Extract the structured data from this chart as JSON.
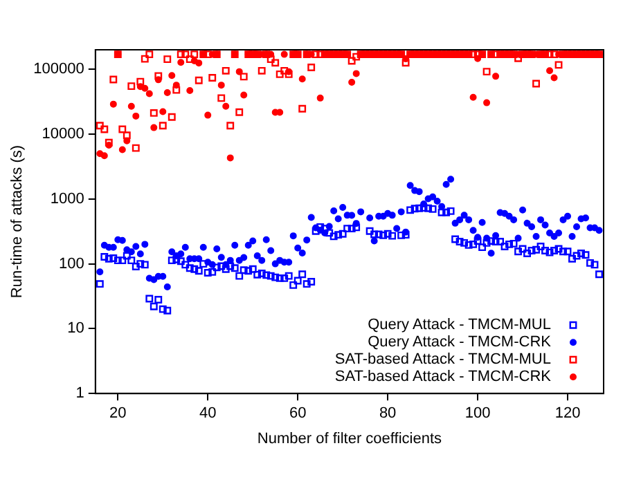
{
  "chart_data": {
    "type": "scatter",
    "xlabel": "Number of filter coefficients",
    "ylabel": "Run-time of attacks (s)",
    "log": "y",
    "grid": false,
    "legend": "bottom right",
    "xlim": [
      15,
      128
    ],
    "xticks": [
      20,
      40,
      60,
      80,
      100,
      120
    ],
    "ylim": [
      1,
      200000
    ],
    "yticks": [
      1,
      10,
      100,
      1000,
      10000,
      100000
    ],
    "series": [
      {
        "name": "Query Attack - TMCM-MUL",
        "color": "#0000ff",
        "marker": "square",
        "x": [
          16,
          17,
          18,
          19,
          20,
          21,
          22,
          23,
          24,
          25,
          26,
          27,
          28,
          29,
          30,
          31,
          32,
          33,
          34,
          35,
          36,
          37,
          38,
          39,
          40,
          41,
          42,
          43,
          44,
          45,
          46,
          47,
          48,
          49,
          50,
          51,
          52,
          53,
          54,
          55,
          56,
          57,
          58,
          59,
          60,
          61,
          62,
          63,
          64,
          65,
          66,
          67,
          68,
          69,
          70,
          71,
          72,
          73,
          76,
          77,
          78,
          79,
          80,
          81,
          83,
          84,
          85,
          86,
          87,
          88,
          89,
          90,
          92,
          93,
          94,
          95,
          96,
          97,
          98,
          99,
          100,
          101,
          102,
          103,
          104,
          105,
          106,
          107,
          108,
          109,
          110,
          111,
          112,
          113,
          114,
          115,
          116,
          117,
          118,
          119,
          120,
          121,
          122,
          123,
          124,
          125,
          126,
          127
        ],
        "values": [
          49,
          128,
          120,
          122,
          113,
          113,
          133,
          113,
          91,
          100,
          97,
          29,
          22,
          28,
          20,
          19,
          113,
          117,
          110,
          97,
          86,
          83,
          78,
          100,
          73,
          75,
          88,
          92,
          83,
          92,
          86,
          65,
          80,
          78,
          83,
          68,
          71,
          67,
          65,
          62,
          60,
          60,
          65,
          47,
          55,
          69,
          49,
          53,
          320,
          370,
          350,
          300,
          265,
          280,
          290,
          350,
          350,
          365,
          320,
          285,
          285,
          275,
          290,
          270,
          275,
          280,
          675,
          710,
          720,
          730,
          720,
          700,
          620,
          620,
          650,
          240,
          220,
          210,
          195,
          200,
          225,
          180,
          210,
          225,
          220,
          220,
          185,
          200,
          205,
          155,
          170,
          145,
          160,
          165,
          185,
          160,
          150,
          160,
          170,
          155,
          155,
          120,
          133,
          145,
          137,
          103,
          97,
          69
        ]
      },
      {
        "name": "Query Attack - TMCM-CRK",
        "color": "#0000ff",
        "marker": "circle",
        "x": [
          16,
          17,
          18,
          19,
          20,
          21,
          22,
          23,
          24,
          25,
          26,
          27,
          28,
          29,
          30,
          31,
          32,
          33,
          34,
          35,
          36,
          37,
          38,
          39,
          40,
          41,
          42,
          43,
          44,
          45,
          46,
          47,
          48,
          49,
          50,
          51,
          52,
          53,
          54,
          55,
          56,
          57,
          58,
          59,
          60,
          61,
          62,
          63,
          64,
          65,
          66,
          67,
          68,
          69,
          70,
          71,
          72,
          73,
          74,
          76,
          77,
          78,
          79,
          80,
          81,
          82,
          83,
          84,
          85,
          86,
          87,
          88,
          89,
          90,
          91,
          92,
          93,
          94,
          95,
          96,
          97,
          98,
          99,
          100,
          101,
          102,
          103,
          104,
          105,
          106,
          107,
          108,
          109,
          110,
          111,
          112,
          113,
          114,
          115,
          116,
          117,
          118,
          119,
          120,
          121,
          122,
          123,
          124,
          125,
          126,
          127
        ],
        "values": [
          75,
          193,
          180,
          180,
          235,
          230,
          165,
          153,
          185,
          142,
          200,
          60,
          57,
          64,
          64,
          44,
          153,
          133,
          142,
          180,
          120,
          120,
          120,
          180,
          106,
          97,
          170,
          126,
          97,
          113,
          193,
          113,
          125,
          193,
          225,
          133,
          113,
          235,
          160,
          100,
          113,
          106,
          106,
          270,
          175,
          147,
          233,
          520,
          360,
          330,
          299,
          378,
          655,
          494,
          743,
          561,
          560,
          420,
          634,
          510,
          225,
          543,
          543,
          597,
          561,
          350,
          634,
          309,
          1620,
          1350,
          1300,
          840,
          1010,
          1080,
          925,
          765,
          1680,
          2020,
          423,
          478,
          561,
          478,
          328,
          256,
          435,
          248,
          146,
          272,
          616,
          597,
          543,
          478,
          248,
          676,
          423,
          373,
          264,
          478,
          396,
          299,
          264,
          299,
          478,
          543,
          264,
          373,
          494,
          510,
          360,
          360,
          328
        ]
      },
      {
        "name": "SAT-based Attack - TMCM-MUL",
        "color": "#ff0000",
        "marker": "square",
        "x": [
          16,
          17,
          18,
          19,
          20,
          21,
          22,
          23,
          24,
          25,
          26,
          27,
          28,
          29,
          30,
          31,
          32,
          33,
          34,
          35,
          36,
          37,
          38,
          39,
          40,
          41,
          42,
          43,
          44,
          45,
          46,
          47,
          48,
          49,
          50,
          51,
          52,
          53,
          54,
          55,
          56,
          57,
          58,
          59,
          60,
          61,
          62,
          63,
          64,
          65,
          66,
          67,
          68,
          69,
          70,
          71,
          72,
          73,
          74,
          75,
          76,
          77,
          78,
          79,
          80,
          81,
          82,
          83,
          84,
          85,
          86,
          87,
          88,
          89,
          90,
          91,
          92,
          93,
          94,
          95,
          96,
          97,
          98,
          99,
          100,
          101,
          102,
          103,
          104,
          105,
          106,
          107,
          108,
          109,
          110,
          111,
          112,
          113,
          114,
          115,
          116,
          117,
          118,
          119,
          120,
          121,
          122,
          123,
          124,
          125,
          126,
          127
        ],
        "values": [
          13500,
          11900,
          7400,
          69600,
          170000,
          11900,
          9600,
          55000,
          6100,
          64400,
          145000,
          170000,
          21200,
          79000,
          13500,
          143000,
          18400,
          48000,
          170000,
          170000,
          143000,
          170000,
          67500,
          170000,
          170000,
          74000,
          170000,
          36000,
          95000,
          13500,
          170000,
          21800,
          77000,
          170000,
          170000,
          170000,
          95000,
          170000,
          143000,
          126000,
          84000,
          95000,
          84000,
          170000,
          170000,
          24700,
          170000,
          107000,
          170000,
          170000,
          170000,
          170000,
          170000,
          170000,
          170000,
          170000,
          135000,
          156000,
          170000,
          170000,
          170000,
          170000,
          170000,
          170000,
          170000,
          170000,
          170000,
          170000,
          126000,
          170000,
          170000,
          170000,
          170000,
          170000,
          170000,
          170000,
          170000,
          170000,
          170000,
          170000,
          170000,
          170000,
          170000,
          170000,
          170000,
          170000,
          92000,
          170000,
          170000,
          170000,
          170000,
          170000,
          170000,
          148000,
          170000,
          170000,
          170000,
          60000,
          170000,
          170000,
          170000,
          170000,
          117000,
          170000,
          170000,
          170000,
          170000,
          170000,
          170000,
          170000,
          170000,
          170000
        ]
      },
      {
        "name": "SAT-based Attack - TMCM-CRK",
        "color": "#ff0000",
        "marker": "circle",
        "x": [
          16,
          17,
          18,
          19,
          20,
          21,
          22,
          23,
          24,
          25,
          26,
          27,
          28,
          29,
          30,
          31,
          32,
          33,
          34,
          36,
          37,
          38,
          39,
          40,
          41,
          42,
          43,
          44,
          45,
          46,
          47,
          48,
          49,
          50,
          51,
          52,
          53,
          54,
          55,
          56,
          57,
          58,
          59,
          60,
          61,
          62,
          63,
          65,
          66,
          67,
          68,
          69,
          70,
          71,
          72,
          73,
          74,
          75,
          76,
          77,
          78,
          79,
          80,
          81,
          82,
          83,
          84,
          85,
          86,
          87,
          88,
          89,
          90,
          91,
          92,
          93,
          94,
          95,
          96,
          97,
          98,
          99,
          100,
          101,
          102,
          103,
          104,
          105,
          106,
          107,
          108,
          109,
          110,
          111,
          112,
          113,
          114,
          115,
          116,
          117,
          118,
          119,
          120,
          121,
          122,
          123,
          124,
          125,
          126,
          127
        ],
        "values": [
          5000,
          4650,
          6750,
          29000,
          170000,
          5750,
          7900,
          26900,
          19000,
          54000,
          51000,
          42000,
          12600,
          69000,
          22200,
          43600,
          80000,
          57000,
          128000,
          47000,
          135000,
          125000,
          170000,
          19600,
          170000,
          170000,
          57000,
          26900,
          4300,
          170000,
          92000,
          40000,
          170000,
          170000,
          170000,
          170000,
          170000,
          170000,
          21700,
          21700,
          170000,
          92000,
          170000,
          170000,
          71000,
          170000,
          170000,
          36000,
          170000,
          170000,
          170000,
          170000,
          170000,
          170000,
          63000,
          86000,
          170000,
          170000,
          170000,
          170000,
          170000,
          170000,
          170000,
          170000,
          170000,
          170000,
          145000,
          170000,
          170000,
          170000,
          170000,
          170000,
          170000,
          170000,
          170000,
          170000,
          170000,
          170000,
          170000,
          170000,
          170000,
          37000,
          146000,
          170000,
          30500,
          170000,
          78000,
          170000,
          170000,
          170000,
          170000,
          170000,
          170000,
          170000,
          170000,
          170000,
          170000,
          170000,
          95000,
          74000,
          170000,
          170000,
          170000,
          170000,
          170000,
          170000,
          170000,
          170000,
          170000,
          170000
        ]
      }
    ]
  }
}
